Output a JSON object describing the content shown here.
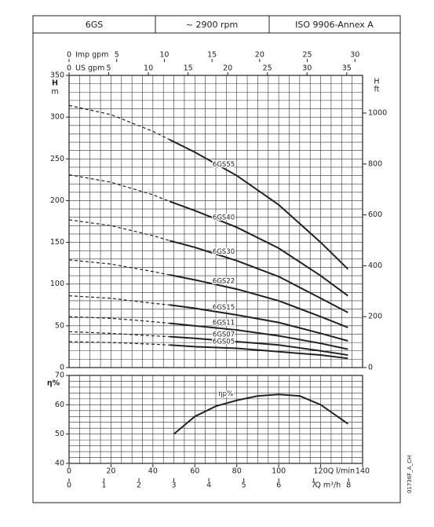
{
  "header": {
    "cells": [
      "6GS",
      "~ 2900 rpm",
      "ISO 9906-Annex A"
    ]
  },
  "code": "01736F_A_CH",
  "chart_data": [
    {
      "type": "line",
      "y_label": "H",
      "y_unit": "m",
      "y2_label": "H",
      "y2_unit": "ft",
      "xlim": [
        0,
        140
      ],
      "x_minor_step": 5,
      "ylim": [
        0,
        350
      ],
      "y_minor_step": 10,
      "yticks": [
        0,
        50,
        100,
        150,
        200,
        250,
        300,
        350
      ],
      "y2lim": [
        0,
        1148
      ],
      "y2ticks": [
        0,
        200,
        400,
        600,
        800,
        1000
      ],
      "top_axes": [
        {
          "label": "Imp gpm",
          "xlim": [
            0,
            30.8
          ],
          "xticks": [
            0,
            5,
            10,
            15,
            20,
            25,
            30
          ]
        },
        {
          "label": "US gpm",
          "xlim": [
            0,
            37.0
          ],
          "xticks": [
            0,
            5,
            10,
            15,
            20,
            25,
            30,
            35
          ]
        }
      ],
      "dash_end": 48,
      "label_x": 76,
      "x": [
        0,
        20,
        40,
        48,
        60,
        80,
        100,
        120,
        133
      ],
      "series": [
        {
          "name": "6GS55",
          "color": "#222222",
          "values": [
            314,
            303,
            283,
            273,
            258,
            230,
            195,
            150,
            118
          ]
        },
        {
          "name": "6GS40",
          "color": "#222222",
          "values": [
            231,
            222,
            207,
            199,
            188,
            168,
            143,
            110,
            86
          ]
        },
        {
          "name": "6GS30",
          "color": "#222222",
          "values": [
            177,
            170,
            158,
            152,
            144,
            128,
            109,
            83,
            66
          ]
        },
        {
          "name": "6GS22",
          "color": "#222222",
          "values": [
            129,
            124,
            115,
            111,
            105,
            94,
            80,
            61,
            48
          ]
        },
        {
          "name": "6GS15",
          "color": "#222222",
          "values": [
            86,
            83,
            77,
            75,
            71,
            63,
            54,
            41,
            32
          ]
        },
        {
          "name": "6GS11",
          "color": "#222222",
          "values": [
            61,
            59,
            55,
            53,
            50,
            45,
            38,
            29,
            22
          ]
        },
        {
          "name": "6GS07",
          "color": "#222222",
          "values": [
            43,
            41,
            38,
            37,
            35,
            31,
            27,
            20,
            15
          ]
        },
        {
          "name": "6GS05",
          "color": "#222222",
          "values": [
            31,
            30,
            28,
            27,
            25,
            23,
            19,
            15,
            11
          ]
        }
      ]
    },
    {
      "type": "line",
      "y_label": "η%",
      "xlim": [
        0,
        140
      ],
      "x_minor_step": 5,
      "ylim": [
        40,
        70
      ],
      "y_minor_step": 2,
      "yticks": [
        40,
        50,
        60,
        70
      ],
      "bottom_axes": [
        {
          "label": "Q l/min",
          "xlim": [
            0,
            140
          ],
          "xticks": [
            0,
            20,
            40,
            60,
            80,
            100,
            120,
            140
          ]
        },
        {
          "label": "Q m³/h",
          "xlim": [
            0,
            8.4
          ],
          "xticks": [
            0,
            1,
            2,
            3,
            4,
            5,
            6,
            7,
            8
          ]
        }
      ],
      "label_x": 80,
      "x": [
        50,
        60,
        70,
        80,
        90,
        100,
        110,
        120,
        133
      ],
      "series": [
        {
          "name": "ηp%",
          "color": "#222222",
          "values": [
            50,
            56,
            59.5,
            61.5,
            63,
            63.5,
            63,
            60,
            53.5
          ]
        }
      ]
    }
  ]
}
